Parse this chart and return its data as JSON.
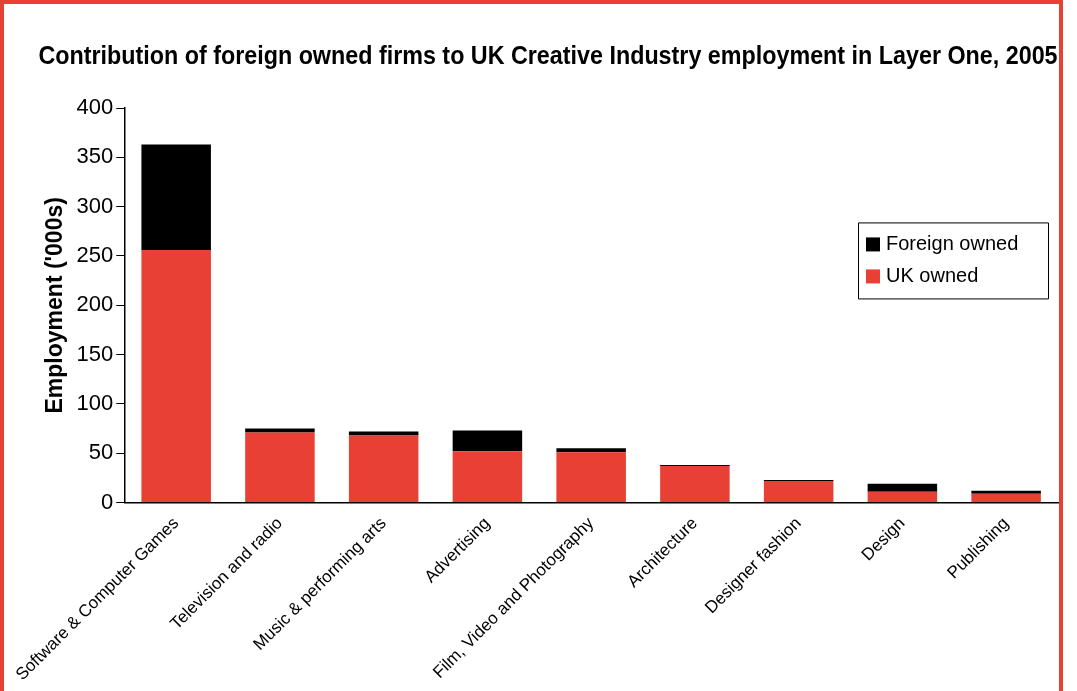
{
  "chart_data": {
    "type": "bar",
    "title": "Contribution of foreign owned firms to UK Creative Industry employment in Layer One, 2005",
    "ylabel": "Employment ('000s)",
    "categories": [
      "Software & Computer Games",
      "Television and radio",
      "Music & performing arts",
      "Advertising",
      "Film, Video and Photography",
      "Architecture",
      "Designer fashion",
      "Design",
      "Publishing"
    ],
    "series": [
      {
        "name": "UK owned",
        "color": "#e84034",
        "values": [
          256,
          71,
          68,
          52,
          51,
          37,
          22,
          11,
          9
        ]
      },
      {
        "name": "Foreign owned",
        "color": "#000000",
        "values": [
          107,
          4,
          4,
          21,
          4,
          1,
          1,
          8,
          3
        ]
      }
    ],
    "stacked": true,
    "ylim": [
      0,
      400
    ],
    "yticks": [
      0,
      50,
      100,
      150,
      200,
      250,
      300,
      350,
      400
    ],
    "grid": false,
    "legend": "right"
  }
}
